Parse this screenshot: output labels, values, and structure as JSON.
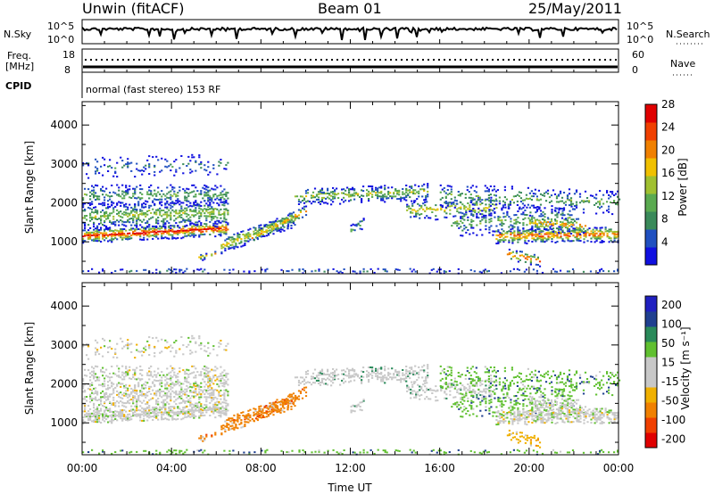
{
  "header": {
    "station": "Unwin (fitACF)",
    "beam": "Beam 01",
    "date": "25/May/2011"
  },
  "summary": {
    "nsky_label": "N.Sky",
    "nsearch_label": "N.Search",
    "nsky_ticks": [
      "10^5",
      "10^0"
    ],
    "nsky_right_ticks": [
      "10^5",
      "10^0"
    ],
    "freq_label_1": "Freq.",
    "freq_label_2": "[MHz]",
    "freq_ticks": [
      "18",
      "8"
    ],
    "nave_label": "Nave",
    "nave_ticks": [
      "60",
      "0"
    ],
    "cpid_label": "CPID",
    "cpid_text": "normal (fast stereo) 153 RF"
  },
  "colors": {
    "power": [
      "#1010e0",
      "#2050c0",
      "#3a8a5a",
      "#5aaa50",
      "#a0c030",
      "#f0c000",
      "#f08000",
      "#f04000",
      "#e00000"
    ],
    "velocity": [
      "#e00000",
      "#f04000",
      "#f08000",
      "#f0b000",
      "#c8c8c8",
      "#c8c8c8",
      "#60c030",
      "#2a8a5a",
      "#204090",
      "#2020c0"
    ]
  },
  "chart_data": [
    {
      "type": "heatmap",
      "panel": "power",
      "xlabel": "Time UT",
      "ylabel": "Slant Range [km]",
      "xlim": [
        0,
        24
      ],
      "ylim": [
        180,
        4600
      ],
      "x_ticks": [
        "00:00",
        "04:00",
        "08:00",
        "12:00",
        "16:00",
        "20:00",
        "00:00"
      ],
      "y_ticks": [
        "1000",
        "2000",
        "3000",
        "4000"
      ],
      "y_tick_values": [
        1000,
        2000,
        3000,
        4000
      ],
      "colorbar_label": "Power [dB]",
      "colorbar_ticks": [
        "4",
        "8",
        "12",
        "16",
        "20",
        "24",
        "28"
      ],
      "colorbar_range": [
        0,
        30
      ]
    },
    {
      "type": "heatmap",
      "panel": "velocity",
      "xlabel": "Time UT",
      "ylabel": "Slant Range [km]",
      "xlim": [
        0,
        24
      ],
      "ylim": [
        180,
        4600
      ],
      "x_ticks": [
        "00:00",
        "04:00",
        "08:00",
        "12:00",
        "16:00",
        "20:00",
        "00:00"
      ],
      "y_ticks": [
        "1000",
        "2000",
        "3000",
        "4000"
      ],
      "y_tick_values": [
        1000,
        2000,
        3000,
        4000
      ],
      "colorbar_label": "Velocity [m s⁻¹]",
      "colorbar_ticks": [
        "200",
        "100",
        "50",
        "15",
        "-15",
        "-50",
        "-100",
        "-200"
      ]
    }
  ]
}
